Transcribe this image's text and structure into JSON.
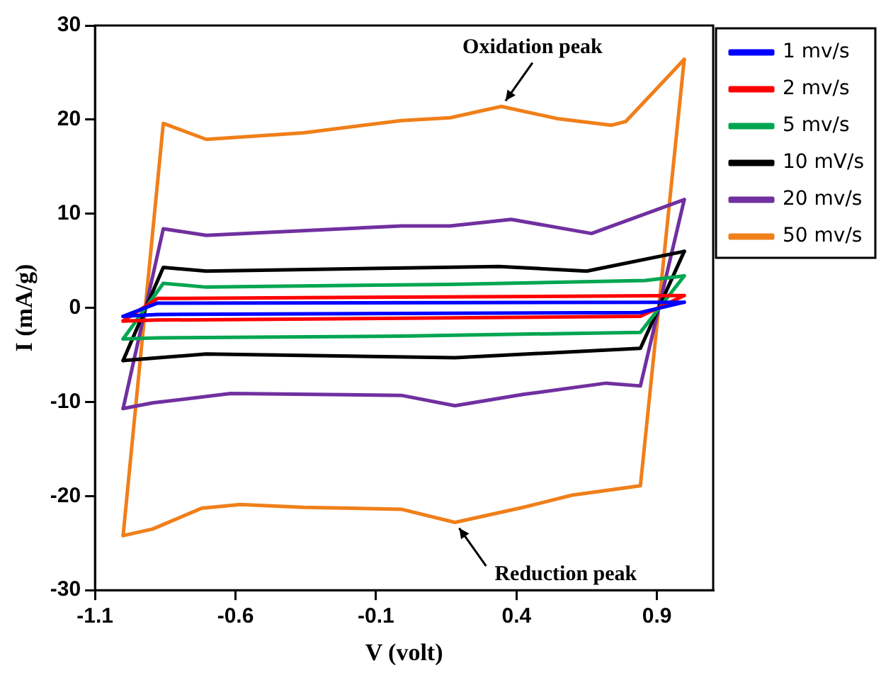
{
  "chart_data": {
    "type": "line",
    "xlabel": "V (volt)",
    "ylabel": "I (mA/g)",
    "xlim": [
      -1.1,
      1.1
    ],
    "xticks": [
      -1.1,
      -0.6,
      -0.1,
      0.4,
      0.9
    ],
    "ylim": [
      -30,
      30
    ],
    "yticks": [
      -30,
      -20,
      -10,
      0,
      10,
      20,
      30
    ],
    "grid": false,
    "legend": "right",
    "marker": "none",
    "line_style": "solid",
    "annotations": [
      {
        "text": "Oxidation peak",
        "x": 0.346,
        "y": 21.4
      },
      {
        "text": "Reduction peak",
        "x": 0.181,
        "y": -22.8
      }
    ],
    "series": [
      {
        "name": "1 mv/s",
        "color": "#0000ff",
        "x": [
          -1.0,
          -0.878,
          0.997
        ],
        "values": [
          -0.9,
          0.5,
          0.6
        ]
      },
      {
        "color": "#0000ff",
        "x": [
          -1.0,
          -0.878,
          0.841,
          0.997
        ],
        "values": [
          -0.9,
          -0.7,
          -0.5,
          0.6
        ]
      },
      {
        "name": "2 mv/s",
        "color": "#ff0000",
        "x": [
          -1.0,
          -0.878,
          0.997
        ],
        "values": [
          -1.4,
          1.0,
          1.3
        ]
      },
      {
        "color": "#ff0000",
        "x": [
          -1.0,
          -0.878,
          0.841,
          0.997
        ],
        "values": [
          -1.4,
          -1.3,
          -0.9,
          1.3
        ]
      },
      {
        "name": "5 mv/s",
        "color": "#00a651",
        "x": [
          -1.0,
          -0.857,
          -0.704,
          0.164,
          0.858,
          0.997
        ],
        "values": [
          -3.3,
          2.6,
          2.2,
          2.5,
          2.9,
          3.4
        ]
      },
      {
        "color": "#00a651",
        "x": [
          -1.0,
          -0.878,
          -0.01,
          0.841,
          0.997
        ],
        "values": [
          -3.3,
          -3.2,
          -3.0,
          -2.6,
          3.4
        ]
      },
      {
        "name": "10 mV/s",
        "color": "#000000",
        "x": [
          -1.0,
          -0.857,
          -0.704,
          0.338,
          0.65,
          0.997
        ],
        "values": [
          -5.6,
          4.3,
          3.9,
          4.4,
          3.9,
          6.0
        ]
      },
      {
        "color": "#000000",
        "x": [
          -1.0,
          -0.704,
          0.181,
          0.841,
          0.997
        ],
        "values": [
          -5.6,
          -4.9,
          -5.3,
          -4.3,
          6.0
        ]
      },
      {
        "name": "20 mv/s",
        "color": "#7030a0",
        "x": [
          -1.0,
          -0.857,
          -0.704,
          -0.01,
          0.164,
          0.381,
          0.667,
          0.997
        ],
        "values": [
          -10.7,
          8.4,
          7.7,
          8.7,
          8.7,
          9.4,
          7.9,
          11.5
        ]
      },
      {
        "color": "#7030a0",
        "x": [
          -1.0,
          -0.895,
          -0.617,
          -0.01,
          0.181,
          0.424,
          0.719,
          0.841,
          0.997
        ],
        "values": [
          -10.7,
          -10.1,
          -9.1,
          -9.3,
          -10.4,
          -9.2,
          -8.0,
          -8.3,
          11.5
        ]
      },
      {
        "name": "50 mv/s",
        "color": "#f07f1a",
        "x": [
          -1.0,
          -0.857,
          -0.704,
          -0.357,
          -0.01,
          0.164,
          0.346,
          0.546,
          0.737,
          0.789,
          0.997
        ],
        "values": [
          -24.2,
          19.6,
          17.9,
          18.6,
          19.9,
          20.2,
          21.4,
          20.1,
          19.4,
          19.8,
          26.4
        ]
      },
      {
        "color": "#f07f1a",
        "x": [
          -1.0,
          -0.895,
          -0.721,
          -0.583,
          -0.357,
          -0.01,
          0.181,
          0.424,
          0.598,
          0.841,
          0.997
        ],
        "values": [
          -24.2,
          -23.5,
          -21.3,
          -20.9,
          -21.2,
          -21.4,
          -22.8,
          -21.2,
          -19.9,
          -18.9,
          26.4
        ]
      }
    ]
  }
}
